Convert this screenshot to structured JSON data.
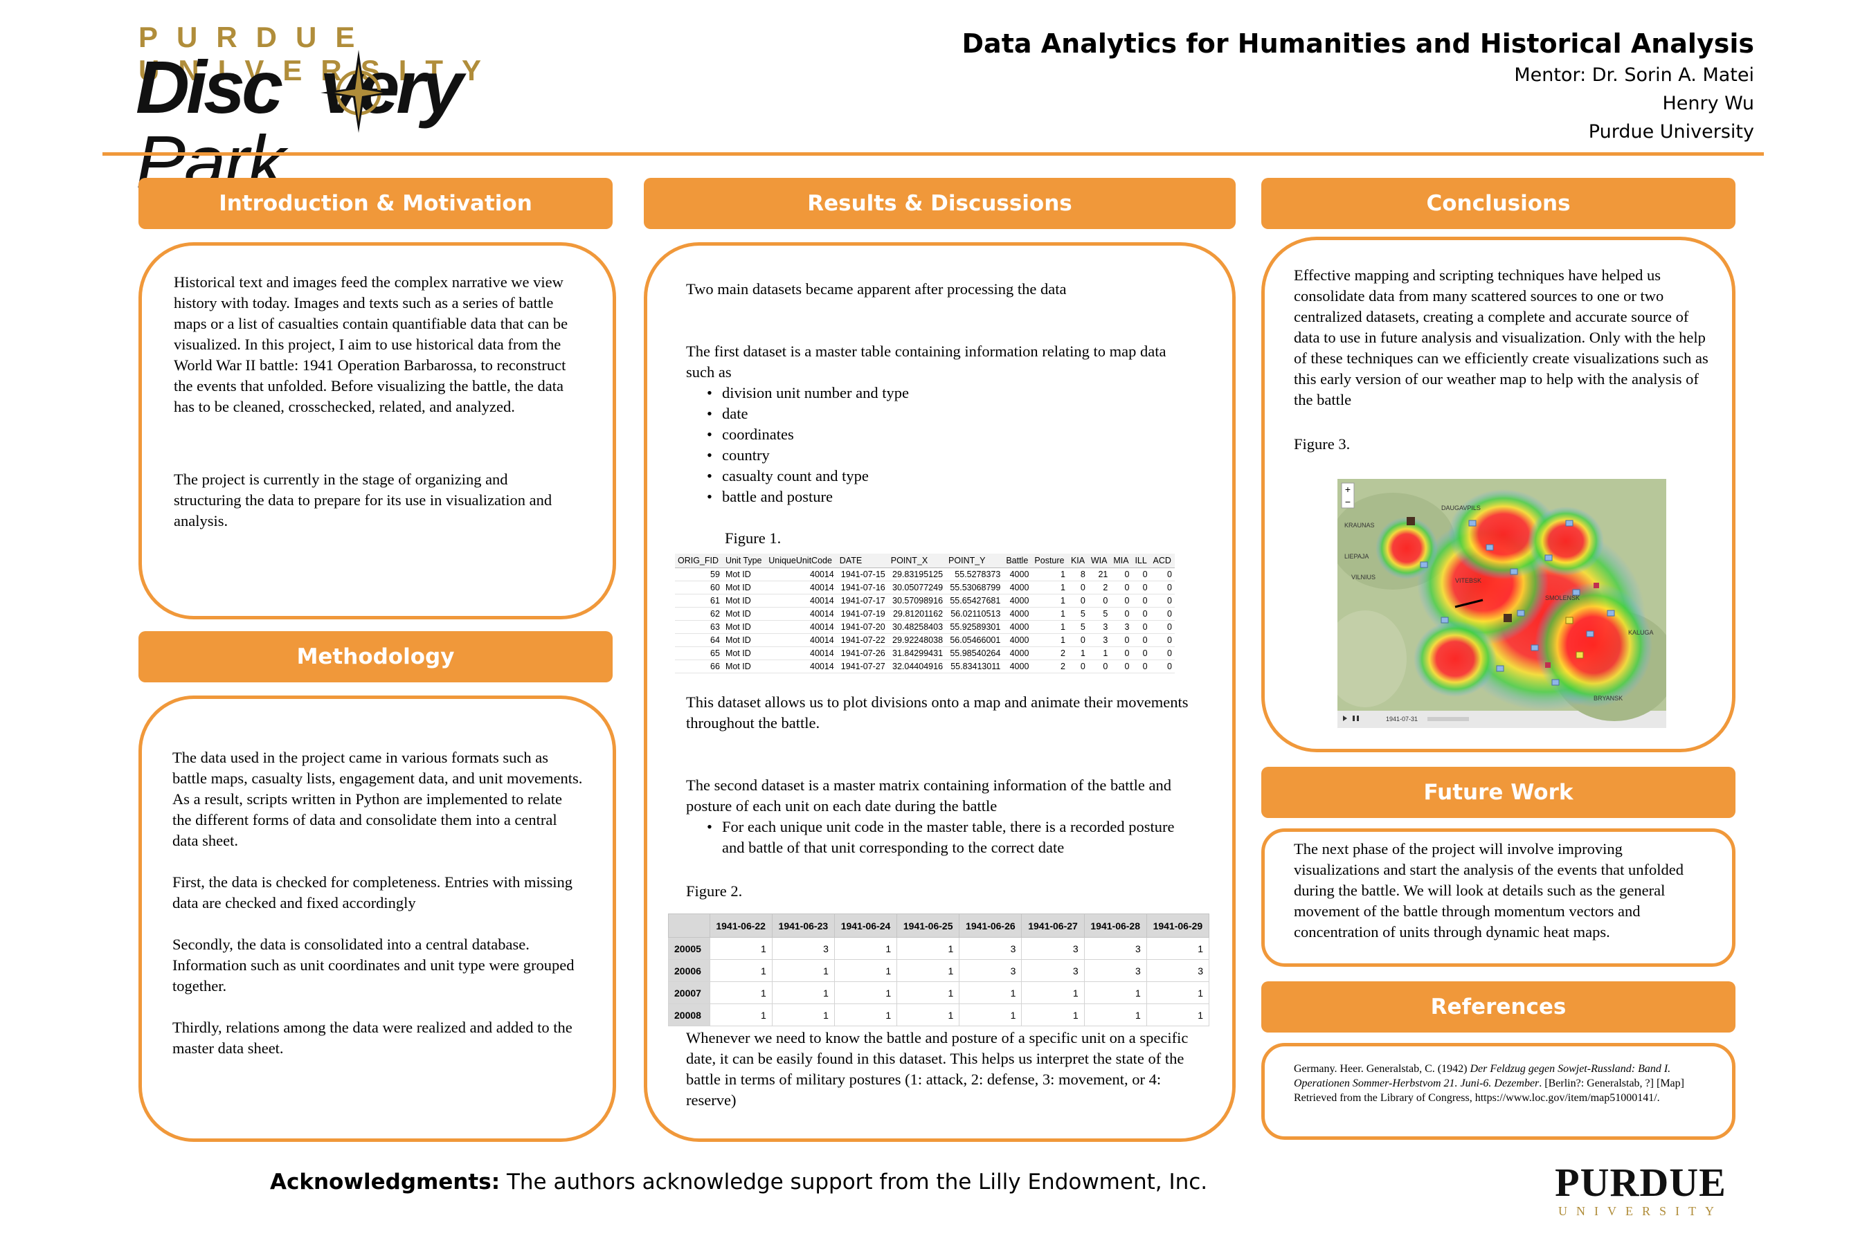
{
  "header": {
    "logo_top": "PURDUE UNIVERSITY",
    "logo_main_a": "Disc",
    "logo_main_b": "very",
    "logo_main_park": "Park",
    "title": "Data Analytics for Humanities and Historical Analysis",
    "mentor": "Mentor: Dr. Sorin A. Matei",
    "author": "Henry Wu",
    "institution": "Purdue University"
  },
  "intro": {
    "heading": "Introduction & Motivation",
    "p1": "Historical text and images feed the complex narrative we view history with today. Images and texts such as a series of battle maps or a list of casualties contain quantifiable data that can be visualized. In this project, I aim to use historical data from the World War II battle: 1941 Operation Barbarossa, to reconstruct the events that unfolded. Before visualizing the battle, the data has to be cleaned, crosschecked, related, and analyzed.",
    "p2": "The project is currently in the stage of organizing and structuring the data to prepare for its use in visualization and analysis."
  },
  "methodology": {
    "heading": "Methodology",
    "p1": "The data used in the project came in various formats such as battle maps, casualty lists, engagement data, and unit movements. As a result, scripts written in Python are implemented to relate the different forms of data and consolidate them into a central data sheet.",
    "p2": "First, the data is checked for completeness. Entries with missing data are checked and fixed accordingly",
    "p3": "Secondly, the data is consolidated into a central database. Information such as unit coordinates and unit type were grouped together.",
    "p4": "Thirdly, relations among the data were realized and added to the master data sheet."
  },
  "results": {
    "heading": "Results & Discussions",
    "p1": "Two main datasets became apparent after processing the data",
    "p2": "The first dataset is a master table containing information relating to map data such as",
    "bullets": [
      "division unit number and type",
      "date",
      "coordinates",
      "country",
      "casualty count and type",
      "battle and posture"
    ],
    "fig1_caption": "Figure 1.",
    "fig1": {
      "headers": [
        "ORIG_FID",
        "Unit Type",
        "UniqueUnitCode",
        "DATE",
        "POINT_X",
        "POINT_Y",
        "Battle",
        "Posture",
        "KIA",
        "WIA",
        "MIA",
        "ILL",
        "ACD"
      ],
      "rows": [
        [
          "59",
          "Mot ID",
          "40014",
          "1941-07-15",
          "29.83195125",
          "55.5278373",
          "4000",
          "1",
          "8",
          "21",
          "0",
          "0",
          "0"
        ],
        [
          "60",
          "Mot ID",
          "40014",
          "1941-07-16",
          "30.05077249",
          "55.53068799",
          "4000",
          "1",
          "0",
          "2",
          "0",
          "0",
          "0"
        ],
        [
          "61",
          "Mot ID",
          "40014",
          "1941-07-17",
          "30.57098916",
          "55.65427681",
          "4000",
          "1",
          "0",
          "0",
          "0",
          "0",
          "0"
        ],
        [
          "62",
          "Mot ID",
          "40014",
          "1941-07-19",
          "29.81201162",
          "56.02110513",
          "4000",
          "1",
          "5",
          "5",
          "0",
          "0",
          "0"
        ],
        [
          "63",
          "Mot ID",
          "40014",
          "1941-07-20",
          "30.48258403",
          "55.92589301",
          "4000",
          "1",
          "5",
          "3",
          "3",
          "0",
          "0"
        ],
        [
          "64",
          "Mot ID",
          "40014",
          "1941-07-22",
          "29.92248038",
          "56.05466001",
          "4000",
          "1",
          "0",
          "3",
          "0",
          "0",
          "0"
        ],
        [
          "65",
          "Mot ID",
          "40014",
          "1941-07-26",
          "31.84299431",
          "55.98540264",
          "4000",
          "2",
          "1",
          "1",
          "0",
          "0",
          "0"
        ],
        [
          "66",
          "Mot ID",
          "40014",
          "1941-07-27",
          "32.04404916",
          "55.83413011",
          "4000",
          "2",
          "0",
          "0",
          "0",
          "0",
          "0"
        ]
      ]
    },
    "p3": "This dataset allows us to plot divisions onto a map and animate their movements throughout the battle.",
    "p4": "The second dataset is a master matrix containing information of the battle and posture of each unit on each date during the battle",
    "bullet2": "For each unique unit code in the master table, there is a recorded posture and battle of that unit corresponding to the correct date",
    "fig2_caption": "Figure 2.",
    "fig2": {
      "headers": [
        "1941-06-22",
        "1941-06-23",
        "1941-06-24",
        "1941-06-25",
        "1941-06-26",
        "1941-06-27",
        "1941-06-28",
        "1941-06-29"
      ],
      "rows": [
        {
          "id": "20005",
          "vals": [
            "1",
            "3",
            "1",
            "1",
            "3",
            "3",
            "3",
            "1"
          ]
        },
        {
          "id": "20006",
          "vals": [
            "1",
            "1",
            "1",
            "1",
            "3",
            "3",
            "3",
            "3"
          ]
        },
        {
          "id": "20007",
          "vals": [
            "1",
            "1",
            "1",
            "1",
            "1",
            "1",
            "1",
            "1"
          ]
        },
        {
          "id": "20008",
          "vals": [
            "1",
            "1",
            "1",
            "1",
            "1",
            "1",
            "1",
            "1"
          ]
        }
      ]
    },
    "p5": "Whenever we need to know the battle and posture of a specific unit on a specific date, it can be easily found in this dataset. This helps us interpret the state of the battle in terms of military postures (1: attack, 2: defense, 3: movement, or 4: reserve)"
  },
  "conclusions": {
    "heading": "Conclusions",
    "p1": "Effective mapping and scripting techniques have helped us consolidate data from many scattered sources to one or two centralized datasets, creating a complete and accurate source of data to use in future analysis and visualization. Only with the help of these techniques can we efficiently create visualizations such as this early version of our weather map to help with the analysis of the battle",
    "fig3_caption": "Figure 3.",
    "map_labels": [
      "KRAUNAS",
      "VILNIUS",
      "VITEBSK",
      "SMOLENSK",
      "LIEPAJA",
      "KALUGA",
      "BRYANSK",
      "DAUGAVPILS"
    ],
    "map_date": "1941-07-31",
    "map_zoom_in": "+",
    "map_zoom_out": "−"
  },
  "future": {
    "heading": "Future Work",
    "p1": "The next phase of the project will involve improving visualizations and start the analysis of the events that unfolded during the battle. We will look at details such as the general movement of the battle through momentum vectors and concentration of units through dynamic heat maps."
  },
  "references": {
    "heading": "References",
    "r_a": "Germany. Heer. Generalstab, C. (1942) ",
    "r_italic": "Der Feldzug gegen Sowjet-Russland: Band I. Operationen Sommer-Herbstvom 21. Juni-6. Dezember",
    "r_b": ". [Berlin?: Generalstab, ?] [Map] Retrieved from the Library of Congress, https://www.loc.gov/item/map51000141/."
  },
  "footer": {
    "ack_label": "Acknowledgments:",
    "ack_text": " The authors acknowledge support from the Lilly Endowment, Inc.",
    "purdue_name": "PURDUE",
    "purdue_sub": "UNIVERSITY"
  },
  "colors": {
    "accent": "#f0983a",
    "gold": "#b08d3a"
  }
}
